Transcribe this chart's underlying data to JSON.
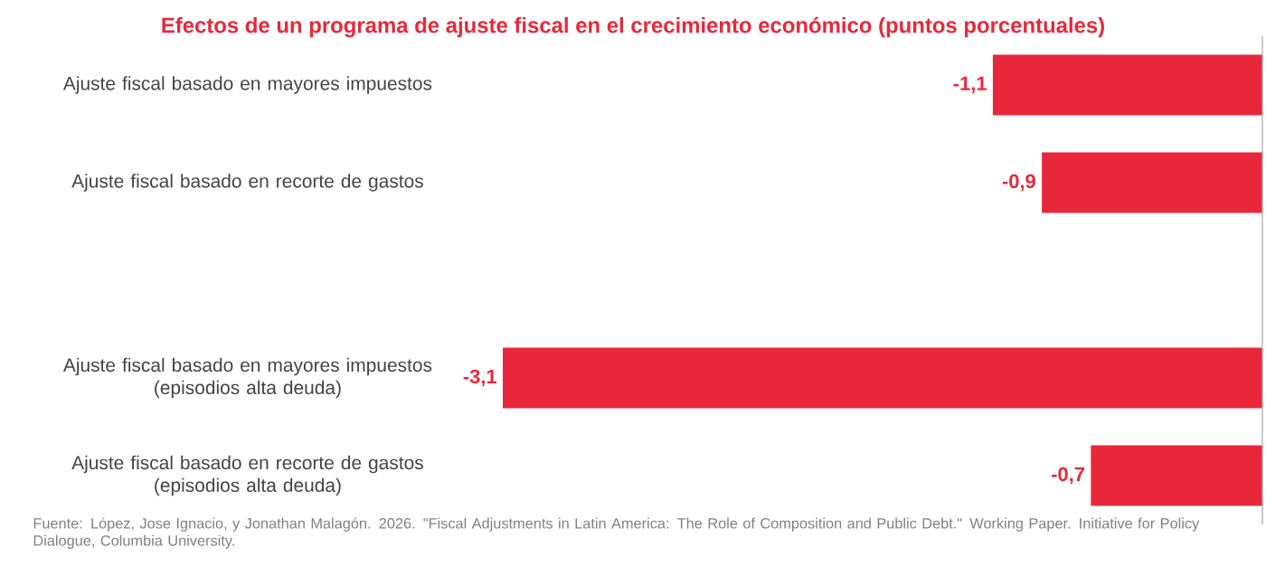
{
  "chart_data": {
    "type": "bar",
    "orientation": "horizontal",
    "title": "Efectos de un programa de ajuste fiscal en el crecimiento económico (puntos porcentuales)",
    "categories": [
      "Ajuste fiscal basado en mayores impuestos",
      "Ajuste fiscal basado en recorte de gastos",
      null,
      "Ajuste fiscal basado en mayores impuestos (episodios alta deuda)",
      "Ajuste fiscal basado en recorte de gastos (episodios alta deuda)"
    ],
    "values": [
      -1.1,
      -0.9,
      null,
      -3.1,
      -0.7
    ],
    "value_labels": [
      "-1,1",
      "-0,9",
      null,
      "-3,1",
      "-0,7"
    ],
    "color": "#e8283a",
    "annotations": [
      "Fuente: López, Jose Ignacio, y Jonathan Malagón. 2026. \"Fiscal Adjustments in Latin America: The Role of Composition and Public Debt.\" Working Paper. Initiative for Policy Dialogue, Columbia University."
    ]
  }
}
